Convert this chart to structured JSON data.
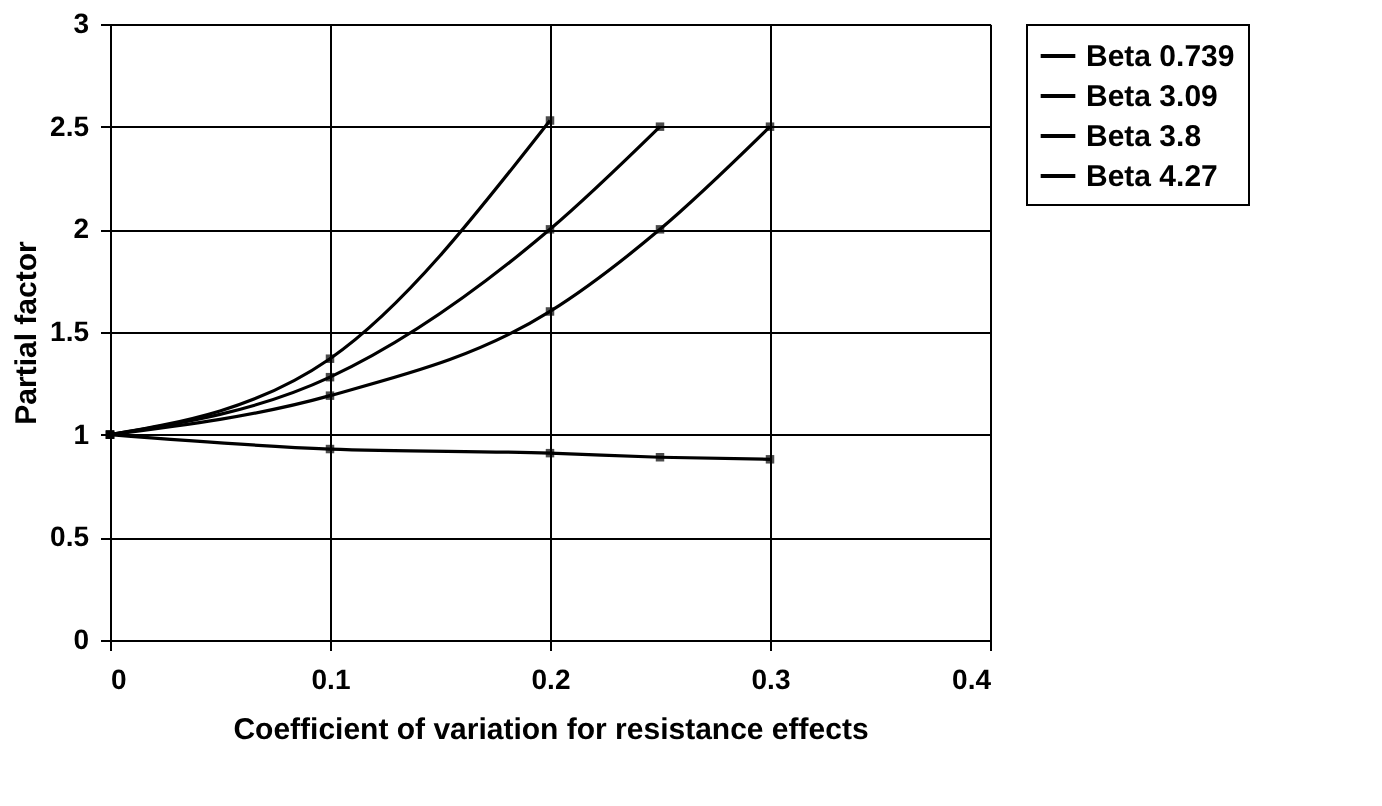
{
  "chart_data": {
    "type": "line",
    "xlabel": "Coefficient of variation for resistance effects",
    "ylabel": "Partial factor",
    "xlim": [
      0,
      0.4
    ],
    "xticks": [
      0,
      0.1,
      0.2,
      0.3,
      0.4
    ],
    "ylim": [
      0,
      3
    ],
    "yticks": [
      0,
      0.5,
      1,
      1.5,
      2,
      2.5,
      3
    ],
    "grid": true,
    "legend": "right",
    "marker": "square",
    "line_style": "solid",
    "series": [
      {
        "name": "Beta 0.739",
        "color": "#000000",
        "x": [
          0,
          0.1,
          0.2,
          0.25,
          0.3
        ],
        "values": [
          1,
          0.93,
          0.91,
          0.89,
          0.88
        ]
      },
      {
        "name": "Beta 3.09",
        "color": "#000000",
        "x": [
          0,
          0.1,
          0.2,
          0.25,
          0.3
        ],
        "values": [
          1,
          1.19,
          1.6,
          2.0,
          2.5
        ]
      },
      {
        "name": "Beta 3.8",
        "color": "#000000",
        "x": [
          0,
          0.1,
          0.2,
          0.25
        ],
        "values": [
          1,
          1.28,
          2.0,
          2.5
        ]
      },
      {
        "name": "Beta 4.27",
        "color": "#000000",
        "x": [
          0,
          0.1,
          0.2
        ],
        "values": [
          1,
          1.37,
          2.53
        ]
      }
    ]
  }
}
